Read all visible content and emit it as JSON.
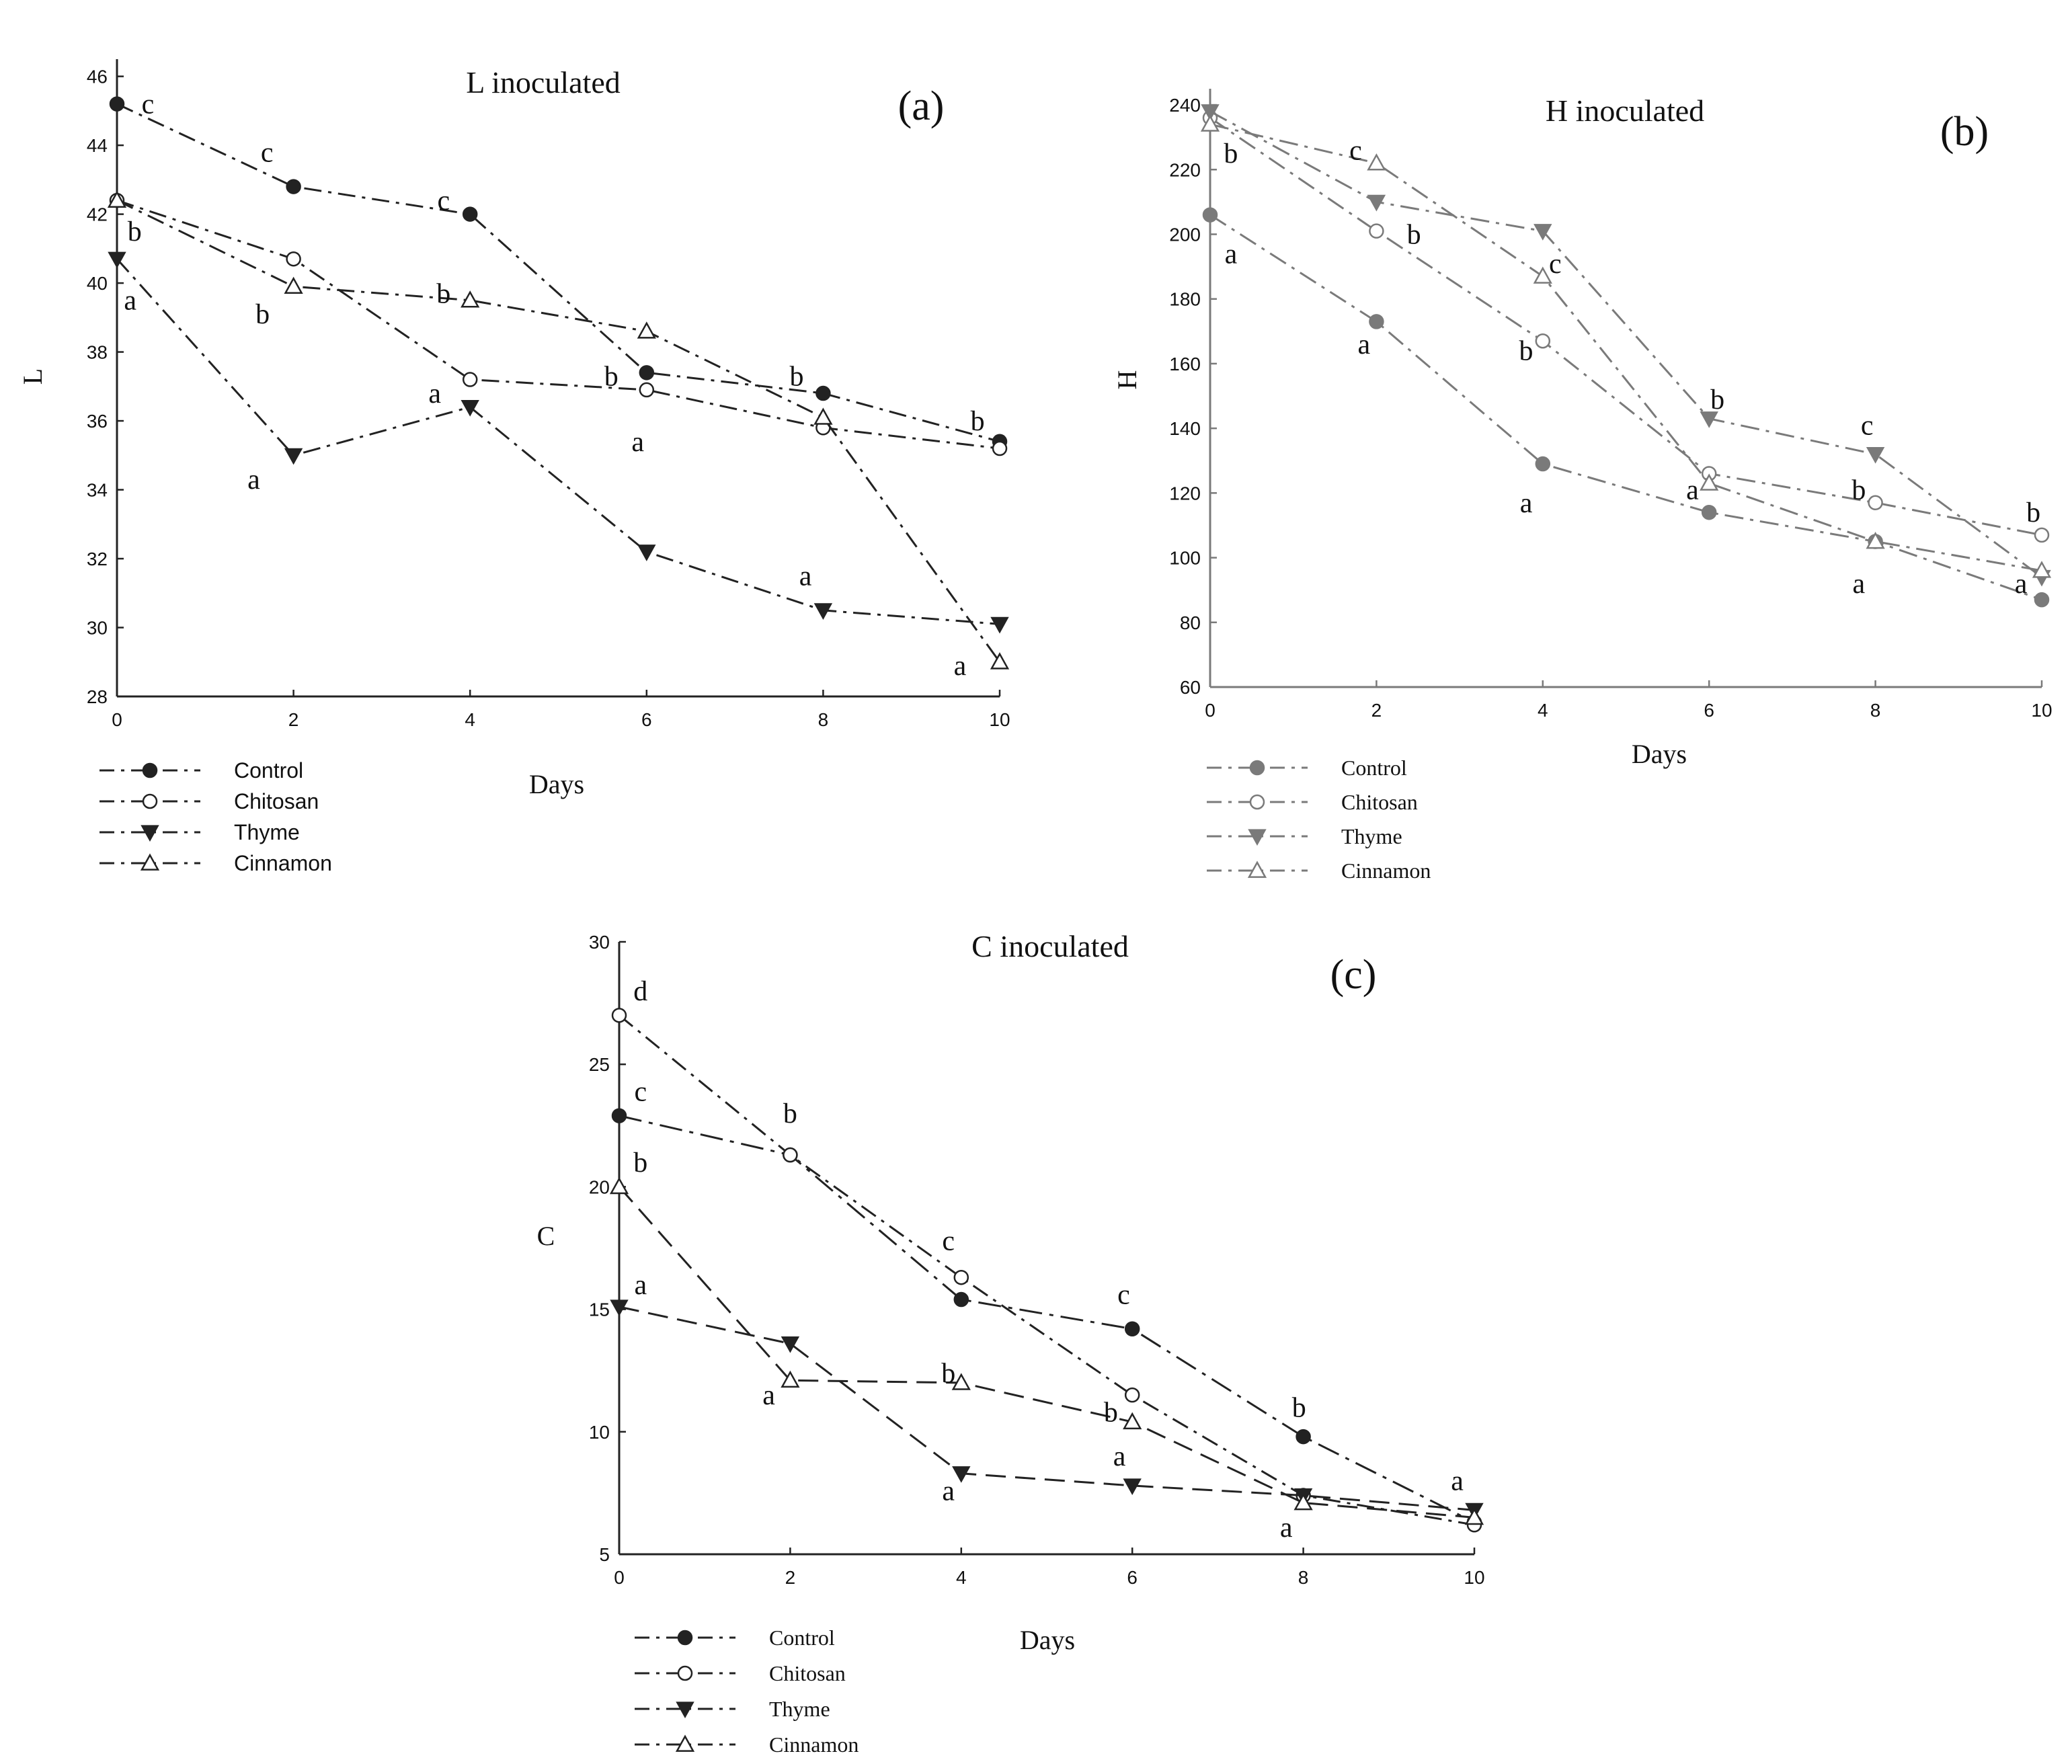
{
  "chart_data": [
    {
      "type": "line",
      "title": "L inoculated",
      "panel_label": "(a)",
      "xlabel": "Days",
      "ylabel": "L",
      "xlim": [
        0,
        10
      ],
      "ylim": [
        28,
        46.5
      ],
      "x_ticks": [
        "0",
        "2",
        "4",
        "6",
        "8",
        "10"
      ],
      "y_ticks": [
        "28",
        "30",
        "32",
        "34",
        "36",
        "38",
        "40",
        "42",
        "44",
        "46"
      ],
      "x": [
        0,
        2,
        4,
        6,
        8,
        10
      ],
      "series": [
        {
          "name": "Control",
          "marker": "filled-circle",
          "values": [
            45.2,
            42.8,
            42.0,
            37.4,
            36.8,
            35.4
          ]
        },
        {
          "name": "Chitosan",
          "marker": "open-circle",
          "values": [
            42.4,
            40.7,
            37.2,
            36.9,
            35.8,
            35.2
          ]
        },
        {
          "name": "Thyme",
          "marker": "filled-triangle-down",
          "values": [
            40.7,
            35.0,
            36.4,
            32.2,
            30.5,
            30.1
          ]
        },
        {
          "name": "Cinnamon",
          "marker": "open-triangle-up",
          "values": [
            42.4,
            39.9,
            39.5,
            38.6,
            36.1,
            29.0
          ]
        }
      ],
      "annotations": [
        {
          "text": "c",
          "x": 0.35,
          "y": 45.2
        },
        {
          "text": "b",
          "x": 0.2,
          "y": 41.5
        },
        {
          "text": "a",
          "x": 0.15,
          "y": 39.5
        },
        {
          "text": "c",
          "x": 1.7,
          "y": 43.8
        },
        {
          "text": "b",
          "x": 1.65,
          "y": 39.1
        },
        {
          "text": "a",
          "x": 1.55,
          "y": 34.3
        },
        {
          "text": "c",
          "x": 3.7,
          "y": 42.4
        },
        {
          "text": "b",
          "x": 3.7,
          "y": 39.7
        },
        {
          "text": "a",
          "x": 3.6,
          "y": 36.8
        },
        {
          "text": "b",
          "x": 5.6,
          "y": 37.3
        },
        {
          "text": "a",
          "x": 5.9,
          "y": 35.4
        },
        {
          "text": "b",
          "x": 7.7,
          "y": 37.3
        },
        {
          "text": "a",
          "x": 7.8,
          "y": 31.5
        },
        {
          "text": "b",
          "x": 9.75,
          "y": 36.0
        },
        {
          "text": "a",
          "x": 9.55,
          "y": 28.9
        }
      ],
      "legend": [
        "Control",
        "Chitosan",
        "Thyme",
        "Cinnamon"
      ],
      "legend_position": "bottom-left"
    },
    {
      "type": "line",
      "title": "H inoculated",
      "panel_label": "(b)",
      "xlabel": "Days",
      "ylabel": "H",
      "xlim": [
        0,
        10
      ],
      "ylim": [
        60,
        245
      ],
      "x_ticks": [
        "0",
        "2",
        "4",
        "6",
        "8",
        "10"
      ],
      "y_ticks": [
        "60",
        "80",
        "100",
        "120",
        "140",
        "160",
        "180",
        "200",
        "220",
        "240"
      ],
      "x": [
        0,
        2,
        4,
        6,
        8,
        10
      ],
      "series": [
        {
          "name": "Control",
          "marker": "filled-circle",
          "values": [
            206,
            173,
            129,
            114,
            105,
            87
          ]
        },
        {
          "name": "Chitosan",
          "marker": "open-circle",
          "values": [
            236,
            201,
            167,
            126,
            117,
            107
          ]
        },
        {
          "name": "Thyme",
          "marker": "filled-triangle-down",
          "values": [
            238,
            210,
            201,
            143,
            132,
            94
          ]
        },
        {
          "name": "Cinnamon",
          "marker": "open-triangle-up",
          "values": [
            234,
            222,
            187,
            123,
            105,
            96
          ]
        }
      ],
      "annotations": [
        {
          "text": "b",
          "x": 0.25,
          "y": 225
        },
        {
          "text": "a",
          "x": 0.25,
          "y": 194
        },
        {
          "text": "c",
          "x": 1.75,
          "y": 226
        },
        {
          "text": "b",
          "x": 2.45,
          "y": 200
        },
        {
          "text": "a",
          "x": 1.85,
          "y": 166
        },
        {
          "text": "c",
          "x": 4.15,
          "y": 191
        },
        {
          "text": "b",
          "x": 3.8,
          "y": 164
        },
        {
          "text": "a",
          "x": 3.8,
          "y": 117
        },
        {
          "text": "b",
          "x": 6.1,
          "y": 149
        },
        {
          "text": "a",
          "x": 5.8,
          "y": 121
        },
        {
          "text": "c",
          "x": 7.9,
          "y": 141
        },
        {
          "text": "b",
          "x": 7.8,
          "y": 121
        },
        {
          "text": "a",
          "x": 7.8,
          "y": 92
        },
        {
          "text": "b",
          "x": 9.9,
          "y": 114
        },
        {
          "text": "a",
          "x": 9.75,
          "y": 92
        }
      ],
      "legend": [
        "Control",
        "Chitosan",
        "Thyme",
        "Cinnamon"
      ],
      "legend_position": "bottom-left"
    },
    {
      "type": "line",
      "title": "C inoculated",
      "panel_label": "(c)",
      "xlabel": "Days",
      "ylabel": "C",
      "xlim": [
        0,
        10
      ],
      "ylim": [
        5,
        30
      ],
      "x_ticks": [
        "0",
        "2",
        "4",
        "6",
        "8",
        "10"
      ],
      "y_ticks": [
        "5",
        "10",
        "15",
        "20",
        "25",
        "30"
      ],
      "x": [
        0,
        2,
        4,
        6,
        8,
        10
      ],
      "series": [
        {
          "name": "Control",
          "marker": "filled-circle",
          "values": [
            22.9,
            21.3,
            15.4,
            14.2,
            9.8,
            6.3
          ]
        },
        {
          "name": "Chitosan",
          "marker": "open-circle",
          "values": [
            27.0,
            21.3,
            16.3,
            11.5,
            7.4,
            6.2
          ]
        },
        {
          "name": "Thyme",
          "marker": "filled-triangle-down",
          "values": [
            15.1,
            13.6,
            8.3,
            7.8,
            7.4,
            6.8
          ]
        },
        {
          "name": "Cinnamon",
          "marker": "open-triangle-up",
          "values": [
            20.0,
            12.1,
            12.0,
            10.4,
            7.1,
            6.5
          ]
        }
      ],
      "annotations": [
        {
          "text": "d",
          "x": 0.25,
          "y": 28.0
        },
        {
          "text": "c",
          "x": 0.25,
          "y": 23.9
        },
        {
          "text": "b",
          "x": 0.25,
          "y": 21.0
        },
        {
          "text": "a",
          "x": 0.25,
          "y": 16.0
        },
        {
          "text": "b",
          "x": 2.0,
          "y": 23.0
        },
        {
          "text": "a",
          "x": 1.75,
          "y": 11.5
        },
        {
          "text": "c",
          "x": 3.85,
          "y": 17.8
        },
        {
          "text": "b",
          "x": 3.85,
          "y": 12.4
        },
        {
          "text": "a",
          "x": 3.85,
          "y": 7.6
        },
        {
          "text": "c",
          "x": 5.9,
          "y": 15.6
        },
        {
          "text": "b",
          "x": 5.75,
          "y": 10.8
        },
        {
          "text": "a",
          "x": 5.85,
          "y": 9.0
        },
        {
          "text": "b",
          "x": 7.95,
          "y": 11.0
        },
        {
          "text": "a",
          "x": 7.8,
          "y": 6.1
        },
        {
          "text": "a",
          "x": 9.8,
          "y": 8.0
        }
      ],
      "legend": [
        "Control",
        "Chitosan",
        "Thyme",
        "Cinnamon"
      ],
      "legend_position": "bottom-left"
    }
  ]
}
